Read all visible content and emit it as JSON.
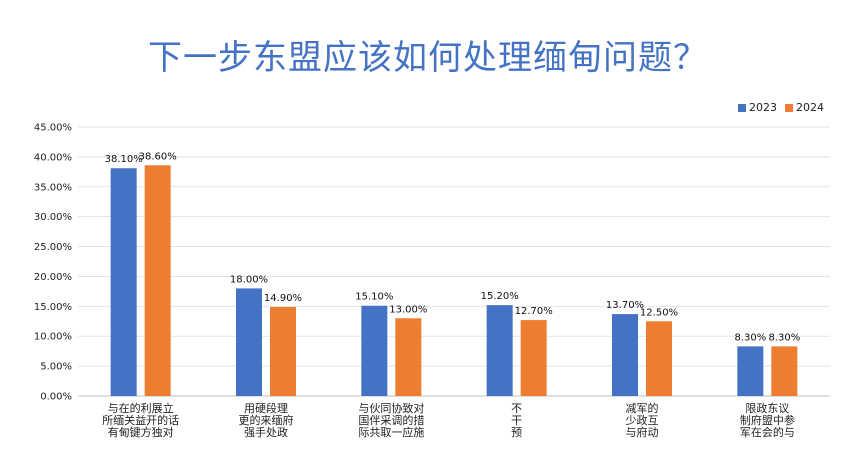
{
  "chart_data": {
    "type": "bar",
    "title": "下一步东盟应该如何处理缅甸问题？",
    "xlabel": "",
    "ylabel": "",
    "ylim": [
      0,
      45
    ],
    "yticks": [
      "0.00%",
      "5.00%",
      "10.00%",
      "15.00%",
      "20.00%",
      "25.00%",
      "30.00%",
      "35.00%",
      "40.00%",
      "45.00%"
    ],
    "categories": [
      [
        "与在的利展立",
        "所缅关益开的话",
        "有甸键方独对"
      ],
      [
        "用硬段理",
        "更的来缅府",
        "强手处政"
      ],
      [
        "与伙同协致对",
        "国伴采调的措",
        "际共取一应施"
      ],
      [
        "不",
        "干",
        "预"
      ],
      [
        "减军的",
        "少政互",
        "与府动"
      ],
      [
        "限政东议",
        "制府盟中参",
        "军在会的与"
      ]
    ],
    "series": [
      {
        "name": "2023",
        "color": "#4472c4",
        "values": [
          38.1,
          18.0,
          15.1,
          15.2,
          13.7,
          8.3
        ],
        "labels": [
          "38.10%",
          "18.00%",
          "15.10%",
          "15.20%",
          "13.70%",
          "8.30%"
        ]
      },
      {
        "name": "2024",
        "color": "#ed7d31",
        "values": [
          38.6,
          14.9,
          13.0,
          12.7,
          12.5,
          8.3
        ],
        "labels": [
          "38.60%",
          "14.90%",
          "13.00%",
          "12.70%",
          "12.50%",
          "8.30%"
        ]
      }
    ],
    "grid": true,
    "legend_position": "top-right"
  }
}
